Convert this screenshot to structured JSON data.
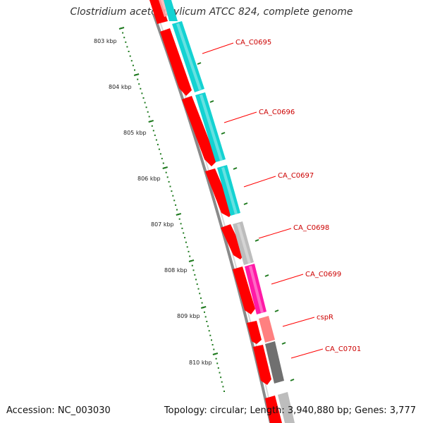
{
  "title": "Clostridium acetobutylicum ATCC 824, complete genome",
  "footer": {
    "accession": "Accession: NC_003030",
    "summary": "Topology: circular; Length: 3,940,880 bp; Genes: 3,777"
  },
  "ruler": {
    "ticks": [
      "803 kbp",
      "804 kbp",
      "805 kbp",
      "806 kbp",
      "807 kbp",
      "808 kbp",
      "809 kbp",
      "810 kbp"
    ]
  },
  "genes": [
    {
      "label": "CA_C0695"
    },
    {
      "label": "CA_C0696"
    },
    {
      "label": "CA_C0697"
    },
    {
      "label": "CA_C0698"
    },
    {
      "label": "CA_C0699"
    },
    {
      "label": "cspR"
    },
    {
      "label": "CA_C0701"
    }
  ],
  "colors": {
    "red_track": "#ff0000",
    "cyan": "#14d2d2",
    "gray_light": "#bdbdbd",
    "magenta": "#ff1aa6",
    "pink": "#ff8080",
    "dark_gray": "#707070",
    "backbone": "#8a8a8a",
    "ruler": "#1f7a1f",
    "label": "#cc0000"
  }
}
